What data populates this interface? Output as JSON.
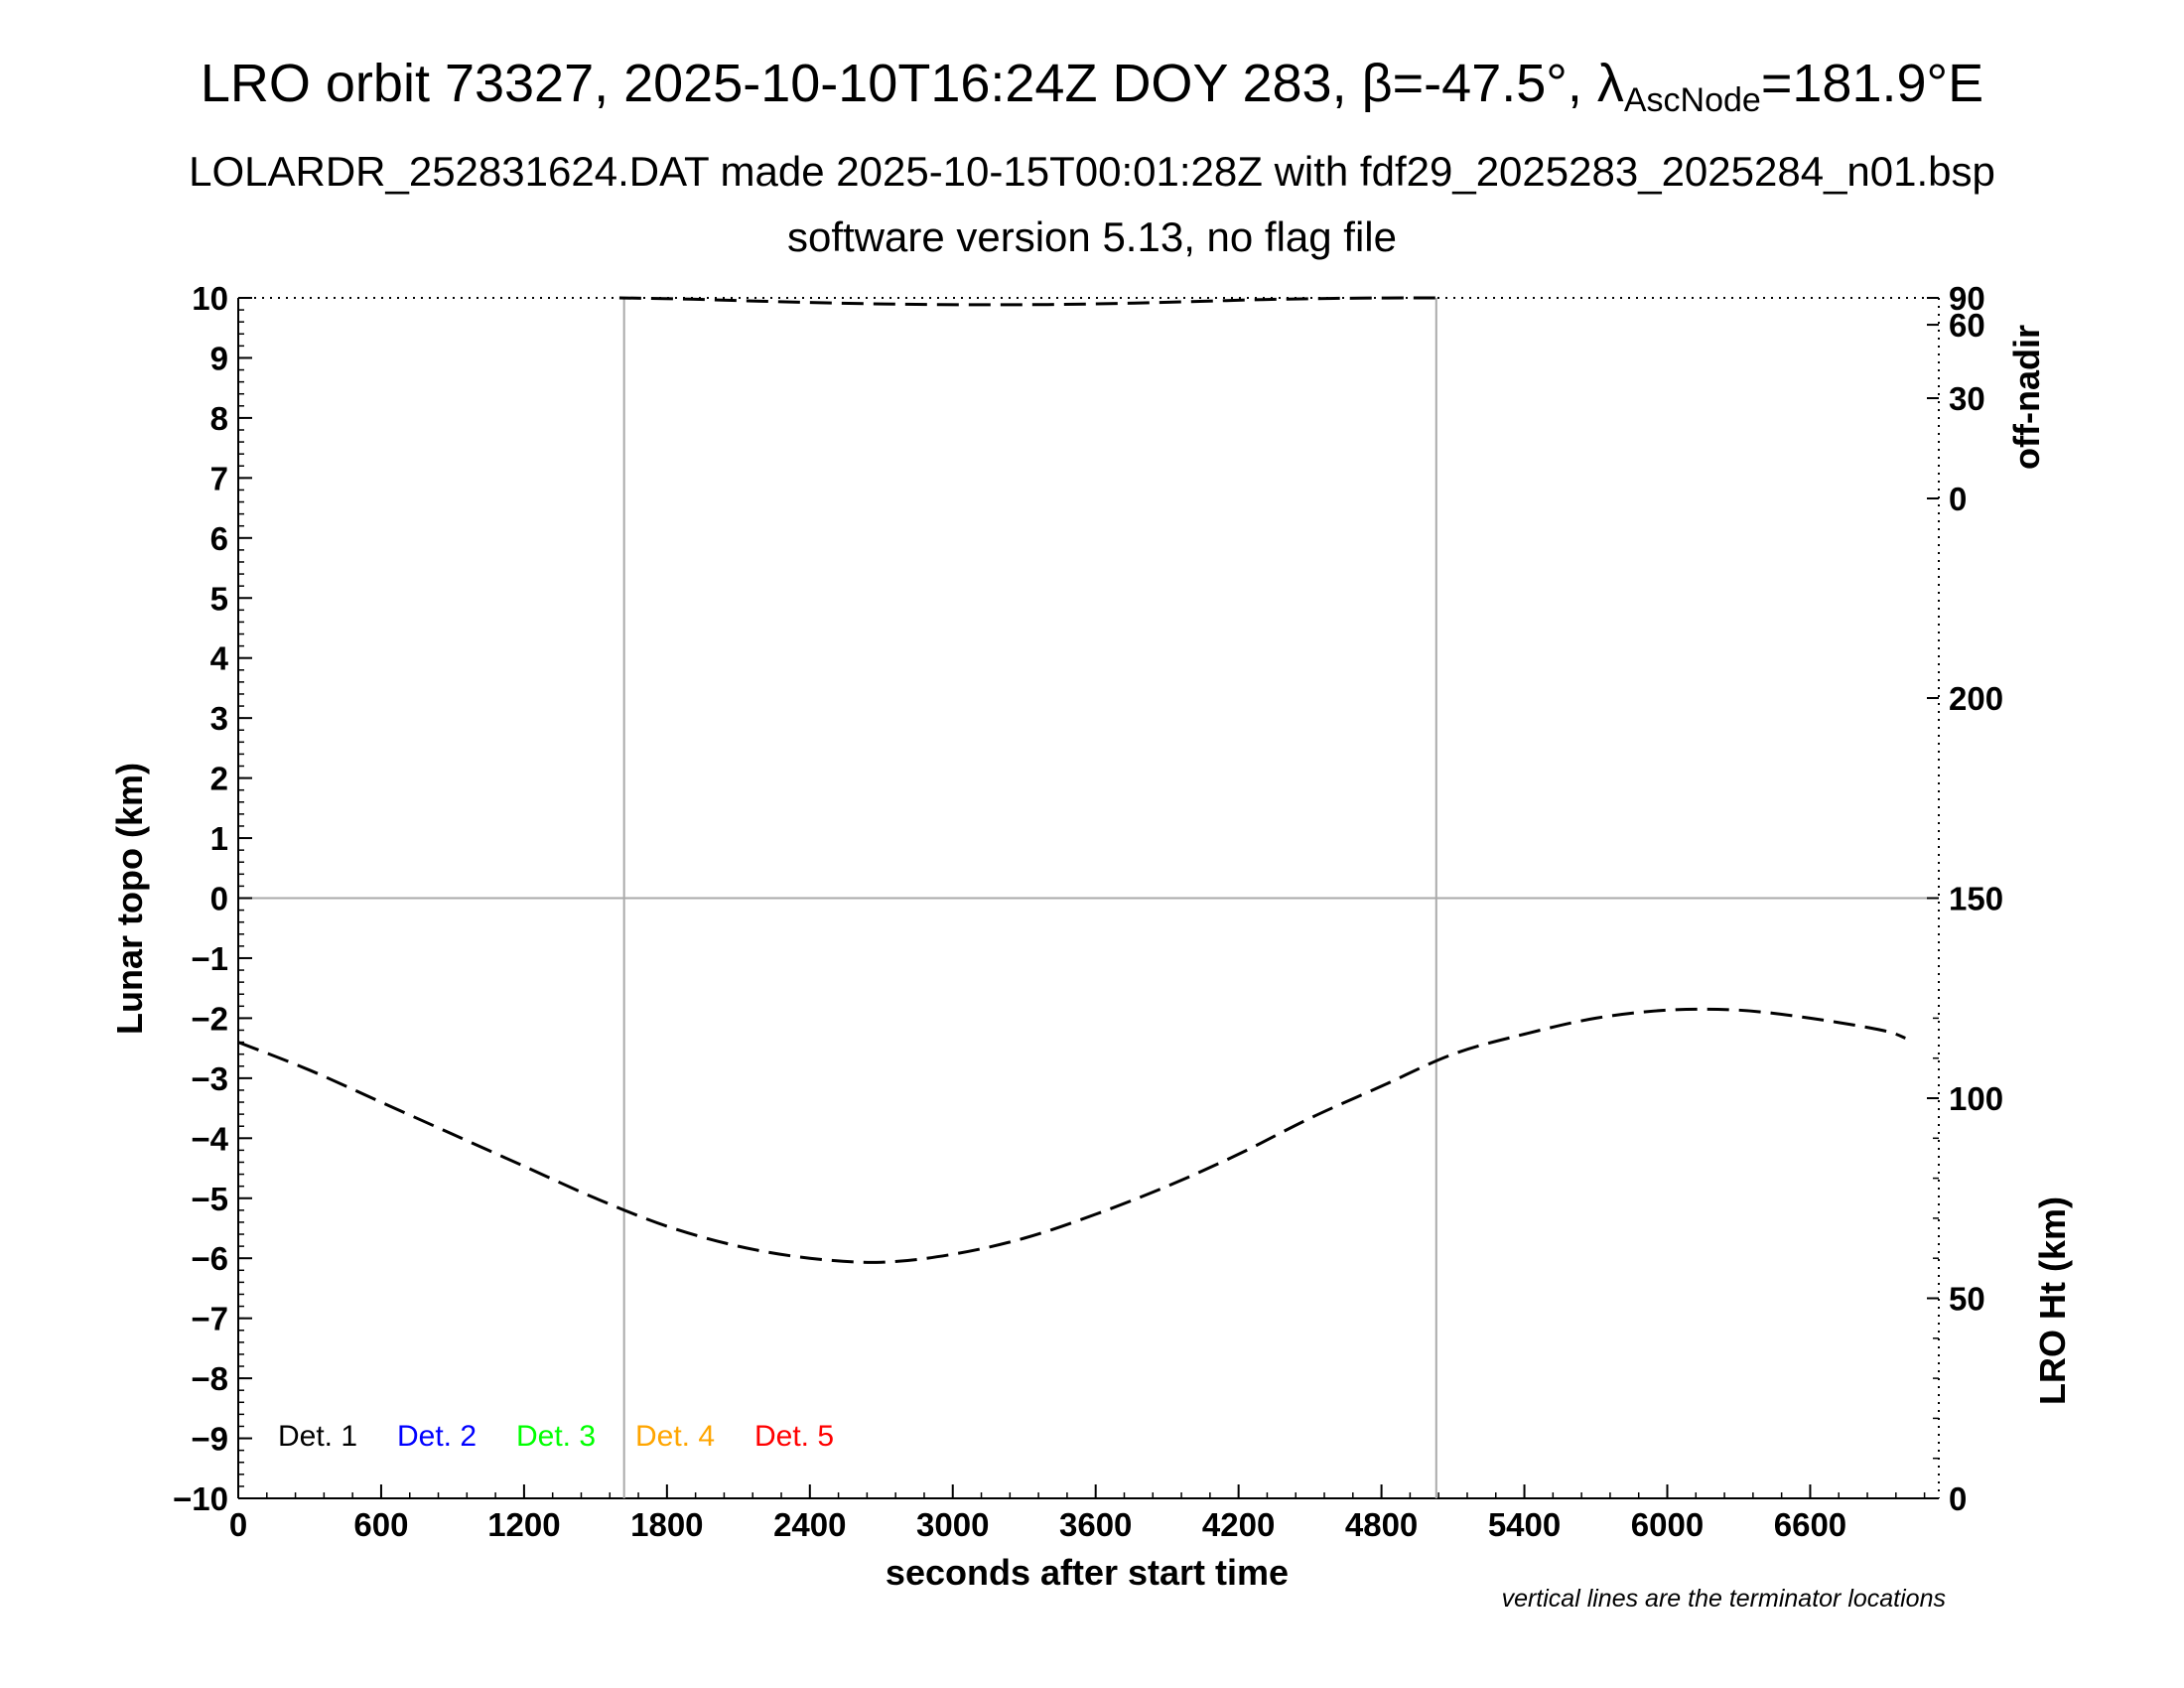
{
  "title": {
    "line1_prefix": "LRO orbit 73327, 2025-10-10T16:24Z DOY 283, β=-47.5°, λ",
    "line1_sub": "AscNode",
    "line1_suffix": "=181.9°E",
    "line2": "LOLARDR_252831624.DAT made 2025-10-15T00:01:28Z with fdf29_2025283_2025284_n01.bsp",
    "line3": "software version 5.13, no flag file"
  },
  "chart_data": {
    "type": "line",
    "x_axis": {
      "label": "seconds after start time",
      "range": [
        0,
        7140
      ],
      "ticks": [
        "0",
        "600",
        "1200",
        "1800",
        "2400",
        "3000",
        "3600",
        "4200",
        "4800",
        "5400",
        "6000",
        "6600"
      ],
      "tick_values": [
        0,
        600,
        1200,
        1800,
        2400,
        3000,
        3600,
        4200,
        4800,
        5400,
        6000,
        6600
      ]
    },
    "y_left": {
      "label": "Lunar topo (km)",
      "range": [
        -10,
        10
      ],
      "ticks": [
        "10",
        "9",
        "8",
        "7",
        "6",
        "5",
        "4",
        "3",
        "2",
        "1",
        "0",
        "−1",
        "−2",
        "−3",
        "−4",
        "−5",
        "−6",
        "−7",
        "−8",
        "−9",
        "−10"
      ],
      "tick_values": [
        10,
        9,
        8,
        7,
        6,
        5,
        4,
        3,
        2,
        1,
        0,
        -1,
        -2,
        -3,
        -4,
        -5,
        -6,
        -7,
        -8,
        -9,
        -10
      ]
    },
    "y_right_top": {
      "label": "off-nadir",
      "ticks": [
        "90",
        "60",
        "30",
        "0"
      ],
      "tick_values": [
        90,
        60,
        30,
        0
      ]
    },
    "y_right_bottom": {
      "label": "LRO Ht (km)",
      "range": [
        0,
        300
      ],
      "ticks": [
        "200",
        "150",
        "100",
        "50",
        "0"
      ],
      "tick_values": [
        200,
        150,
        100,
        50,
        0
      ]
    },
    "terminators": [
      1620,
      5030
    ],
    "series": [
      {
        "style": "dashed",
        "axis": "y_right_bottom",
        "x": [
          0,
          300,
          600,
          900,
          1200,
          1500,
          1800,
          2100,
          2400,
          2700,
          3000,
          3300,
          3600,
          3900,
          4200,
          4500,
          4800,
          5100,
          5400,
          5700,
          6000,
          6300,
          6600,
          6900,
          7000
        ],
        "y": [
          114,
          107,
          99,
          91,
          83,
          75,
          68,
          63,
          60,
          59,
          61,
          65,
          71,
          78,
          86,
          95,
          103,
          111,
          116,
          120,
          122,
          122,
          120,
          117,
          115
        ]
      },
      {
        "style": "dashed",
        "axis": "y_right_top",
        "x": [
          1600,
          1900,
          2200,
          2500,
          2800,
          3100,
          3400,
          3700,
          4000,
          4300,
          4600,
          4900,
          5030
        ],
        "y": [
          89.5,
          83.5,
          79.5,
          77,
          75.5,
          75,
          75.2,
          76.5,
          79,
          82.5,
          86,
          89,
          90
        ]
      }
    ],
    "legend": [
      {
        "label": "Det. 1",
        "color": "#000000"
      },
      {
        "label": "Det. 2",
        "color": "#0000ff"
      },
      {
        "label": "Det. 3",
        "color": "#00ff00"
      },
      {
        "label": "Det. 4",
        "color": "#ffa500"
      },
      {
        "label": "Det. 5",
        "color": "#ff0000"
      }
    ],
    "legend_placement": "bottom-left",
    "footnote": "vertical lines are the terminator locations"
  }
}
